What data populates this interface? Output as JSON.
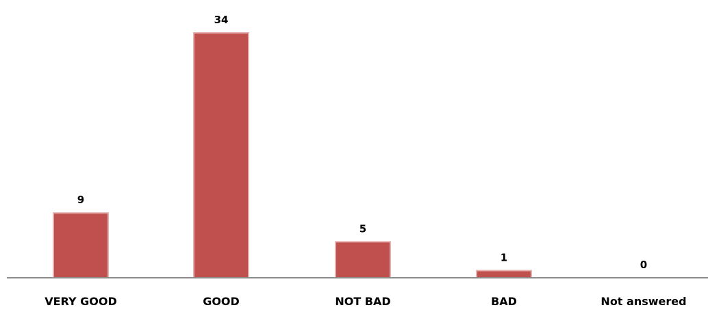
{
  "chart_data": {
    "type": "bar",
    "title": "",
    "xlabel": "",
    "ylabel": "",
    "categories": [
      "VERY GOOD",
      "GOOD",
      "NOT BAD",
      "BAD",
      "Not answered"
    ],
    "values": [
      9,
      34,
      5,
      1,
      0
    ],
    "ylim": [
      0,
      34
    ],
    "grid": false,
    "legend": "none",
    "bar_color": "#c0504d",
    "data_labels": true
  }
}
